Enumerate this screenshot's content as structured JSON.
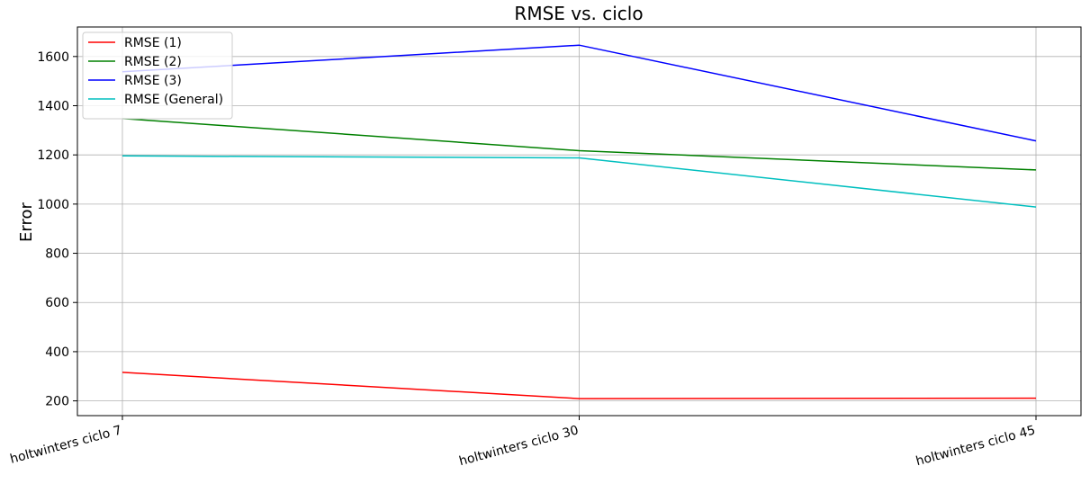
{
  "chart_data": {
    "type": "line",
    "title": "RMSE vs. ciclo",
    "xlabel": "",
    "ylabel": "Error",
    "categories": [
      "holtwinters ciclo 7",
      "holtwinters ciclo 30",
      "holtwinters ciclo 45"
    ],
    "ylim": [
      140,
      1720
    ],
    "yticks": [
      200,
      400,
      600,
      800,
      1000,
      1200,
      1400,
      1600
    ],
    "grid": true,
    "legend_position": "top-left",
    "series": [
      {
        "name": "RMSE (1)",
        "color": "#ff0000",
        "values": [
          316,
          209,
          211
        ]
      },
      {
        "name": "RMSE (2)",
        "color": "#008000",
        "values": [
          1348,
          1217,
          1139
        ]
      },
      {
        "name": "RMSE (3)",
        "color": "#0000ff",
        "values": [
          1538,
          1646,
          1257
        ]
      },
      {
        "name": "RMSE (General)",
        "color": "#00bfbf",
        "values": [
          1196,
          1188,
          988
        ]
      }
    ]
  }
}
